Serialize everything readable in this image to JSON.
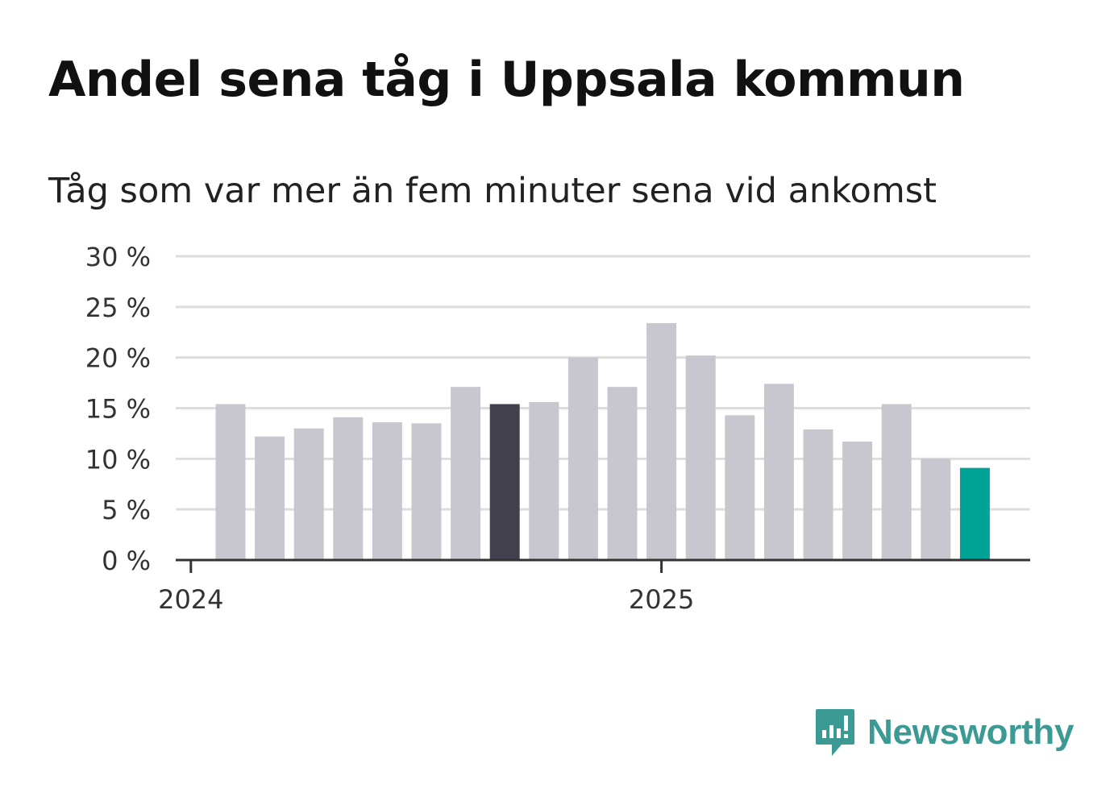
{
  "header": {
    "title": "Andel sena tåg i Uppsala kommun",
    "subtitle": "Tåg som var mer än fem minuter sena vid ankomst"
  },
  "brand": {
    "name": "Newsworthy",
    "color": "#3b9a93",
    "icon": "bar-chart-speech-bubble-icon"
  },
  "colors": {
    "bar_default": "#c8c7d0",
    "bar_highlight_dark": "#42404d",
    "bar_highlight_accent": "#00a396",
    "grid": "#dddddd",
    "axis": "#333333"
  },
  "chart_data": {
    "type": "bar",
    "title": "Andel sena tåg i Uppsala kommun",
    "subtitle": "Tåg som var mer än fem minuter sena vid ankomst",
    "x": [
      "2024-02",
      "2024-03",
      "2024-04",
      "2024-05",
      "2024-06",
      "2024-07",
      "2024-08",
      "2024-09",
      "2024-10",
      "2024-11",
      "2024-12",
      "2025-01",
      "2025-02",
      "2025-03",
      "2025-04",
      "2025-05",
      "2025-06",
      "2025-07",
      "2025-08",
      "2025-09"
    ],
    "values": [
      15.4,
      12.2,
      13.0,
      14.1,
      13.6,
      13.5,
      17.1,
      15.4,
      15.6,
      20.0,
      17.1,
      23.4,
      20.2,
      14.3,
      17.4,
      12.9,
      11.7,
      15.4,
      10.0,
      9.1
    ],
    "highlight": {
      "2024-09": "dark",
      "2025-09": "accent"
    },
    "xtick_labels": [
      {
        "label": "2024",
        "at": "2024-01"
      },
      {
        "label": "2025",
        "at": "2025-01"
      }
    ],
    "yticks": [
      0,
      5,
      10,
      15,
      20,
      25,
      30
    ],
    "ytick_labels": [
      "0 %",
      "5 %",
      "10 %",
      "15 %",
      "20 %",
      "25 %",
      "30 %"
    ],
    "ylim": [
      0,
      30
    ],
    "grid": true,
    "legend": false
  }
}
